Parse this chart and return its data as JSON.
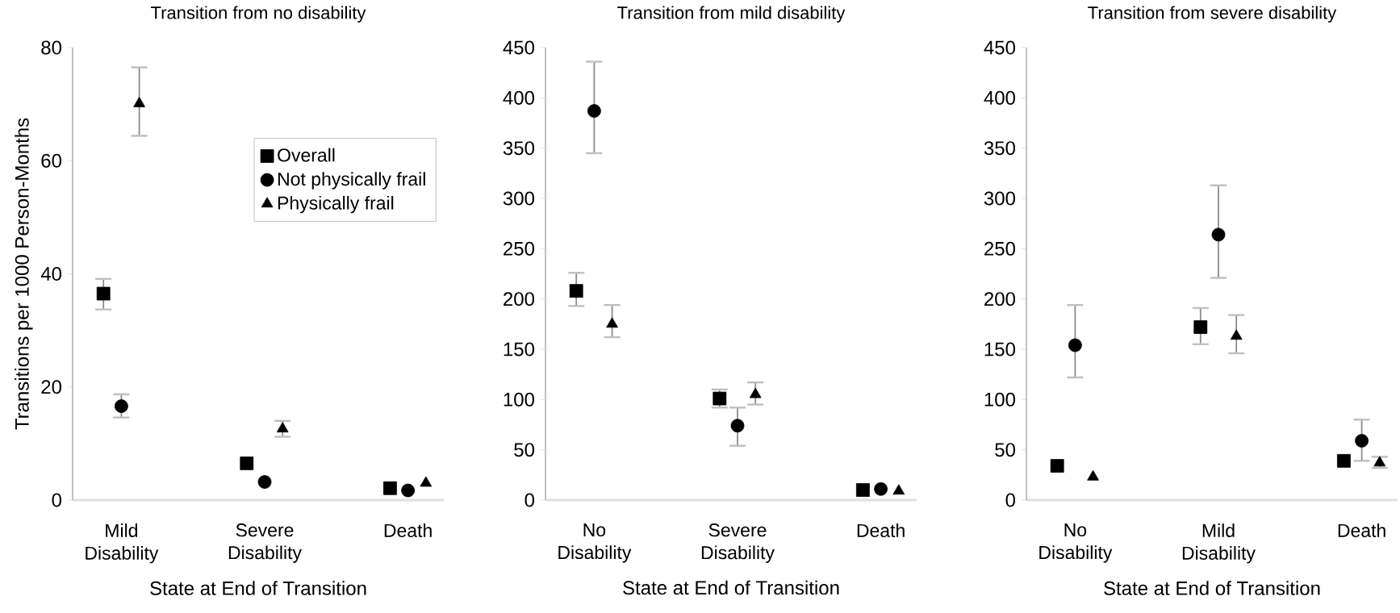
{
  "chart_data": [
    {
      "type": "scatter",
      "title": "Transition from no disability",
      "xlabel": "State at End of Transition",
      "ylabel": "Transitions per 1000 Person-Months",
      "categories": [
        "Mild Disability",
        "Severe Disability",
        "Death"
      ],
      "ylim": [
        0,
        80
      ],
      "yticks": [
        0,
        20,
        40,
        60,
        80
      ],
      "grid": false,
      "legend": "top right",
      "series": [
        {
          "name": "Overall",
          "color": "#000000",
          "marker": "square",
          "values": [
            36.5,
            6.5,
            2.1
          ],
          "errors": [
            [
              33.7,
              39.1
            ],
            null,
            null
          ]
        },
        {
          "name": "Not physically frail",
          "color": "#000000",
          "marker": "circle",
          "values": [
            16.6,
            3.2,
            1.7
          ],
          "errors": [
            [
              14.6,
              18.7
            ],
            null,
            null
          ]
        },
        {
          "name": "Physically frail",
          "color": "#000000",
          "marker": "triangle",
          "values": [
            70.1,
            12.6,
            3.0
          ],
          "errors": [
            [
              64.4,
              76.5
            ],
            [
              11.2,
              14.0
            ],
            null
          ]
        }
      ]
    },
    {
      "type": "scatter",
      "title": "Transition from mild disability",
      "xlabel": "State at End of Transition",
      "categories": [
        "No Disability",
        "Severe Disability",
        "Death"
      ],
      "ylim": [
        0,
        450
      ],
      "yticks": [
        0,
        50,
        100,
        150,
        200,
        250,
        300,
        350,
        400,
        450
      ],
      "grid": false,
      "series": [
        {
          "color": "#000000",
          "marker": "square",
          "values": [
            208,
            101,
            10
          ],
          "errors": [
            [
              193,
              226
            ],
            [
              92,
              110
            ],
            null
          ]
        },
        {
          "color": "#000000",
          "marker": "circle",
          "values": [
            387,
            74,
            11
          ],
          "errors": [
            [
              345,
              436
            ],
            [
              54,
              92
            ],
            null
          ]
        },
        {
          "color": "#000000",
          "marker": "triangle",
          "values": [
            175,
            105,
            9
          ],
          "errors": [
            [
              162,
              194
            ],
            [
              95,
              117
            ],
            null
          ]
        }
      ]
    },
    {
      "type": "scatter",
      "title": "Transition from severe disability",
      "xlabel": "State at End of Transition",
      "categories": [
        "No Disability",
        "Mild Disability",
        "Death"
      ],
      "ylim": [
        0,
        450
      ],
      "yticks": [
        0,
        50,
        100,
        150,
        200,
        250,
        300,
        350,
        400,
        450
      ],
      "grid": false,
      "series": [
        {
          "color": "#000000",
          "marker": "square",
          "values": [
            34,
            172,
            39
          ],
          "errors": [
            null,
            [
              155,
              191
            ],
            null
          ]
        },
        {
          "color": "#000000",
          "marker": "circle",
          "values": [
            154,
            264,
            59
          ],
          "errors": [
            [
              122,
              194
            ],
            [
              221,
              313
            ],
            [
              39,
              80
            ]
          ]
        },
        {
          "color": "#000000",
          "marker": "triangle",
          "values": [
            23,
            163,
            37
          ],
          "errors": [
            null,
            [
              146,
              184
            ],
            [
              32,
              43
            ]
          ]
        }
      ]
    }
  ]
}
